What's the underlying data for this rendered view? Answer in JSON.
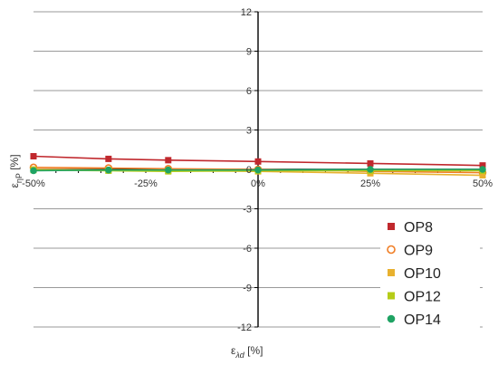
{
  "chart_data": {
    "type": "line",
    "title": "",
    "xlabel": "ε",
    "xlabel_sub": "λd",
    "xlabel_unit": "[%]",
    "ylabel": "ε",
    "ylabel_sub": "ηP",
    "ylabel_unit": "[%]",
    "xlim": [
      -50,
      50
    ],
    "ylim": [
      -12,
      12
    ],
    "x_ticks": [
      -50,
      -25,
      0,
      25,
      50
    ],
    "x_tick_labels": [
      "-50%",
      "-25%",
      "0%",
      "25%",
      "50%"
    ],
    "y_ticks": [
      -12,
      -9,
      -6,
      -3,
      0,
      3,
      6,
      9,
      12
    ],
    "y_tick_labels": [
      "-12",
      "-9",
      "-6",
      "-3",
      "0",
      "3",
      "6",
      "9",
      "12"
    ],
    "grid": "horizontal",
    "legend_position": "bottom-right",
    "x": [
      -50,
      -33.3,
      -20,
      0,
      25,
      50
    ],
    "series": [
      {
        "name": "OP8",
        "color": "#c0282d",
        "marker": "square",
        "values": [
          1.0,
          0.8,
          0.7,
          0.6,
          0.45,
          0.3
        ]
      },
      {
        "name": "OP9",
        "color": "#f07d24",
        "marker": "open-circle",
        "values": [
          0.15,
          0.1,
          0.05,
          0.0,
          -0.15,
          -0.25
        ]
      },
      {
        "name": "OP10",
        "color": "#e8b12f",
        "marker": "square",
        "values": [
          0.0,
          -0.05,
          -0.1,
          -0.15,
          -0.3,
          -0.45
        ]
      },
      {
        "name": "OP12",
        "color": "#b5cc18",
        "marker": "square",
        "values": [
          -0.05,
          -0.1,
          -0.15,
          -0.1,
          -0.1,
          -0.1
        ]
      },
      {
        "name": "OP14",
        "color": "#1fa363",
        "marker": "circle",
        "values": [
          -0.1,
          -0.05,
          -0.05,
          -0.05,
          0.0,
          0.0
        ]
      }
    ]
  }
}
